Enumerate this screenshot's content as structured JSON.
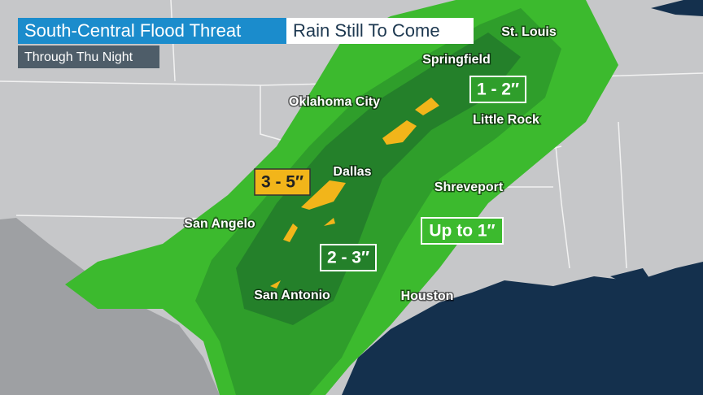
{
  "header": {
    "title": "South-Central Flood Threat",
    "subtitle": "Rain Still To Come",
    "timeframe": "Through Thu Night"
  },
  "cities": [
    "St. Louis",
    "Springfield",
    "Oklahoma City",
    "Little Rock",
    "Dallas",
    "Shreveport",
    "San Angelo",
    "Houston",
    "San Antonio"
  ],
  "rainfall_labels": [
    "1 - 2″",
    "3 - 5″",
    "Up to 1″",
    "2 - 3″"
  ]
}
